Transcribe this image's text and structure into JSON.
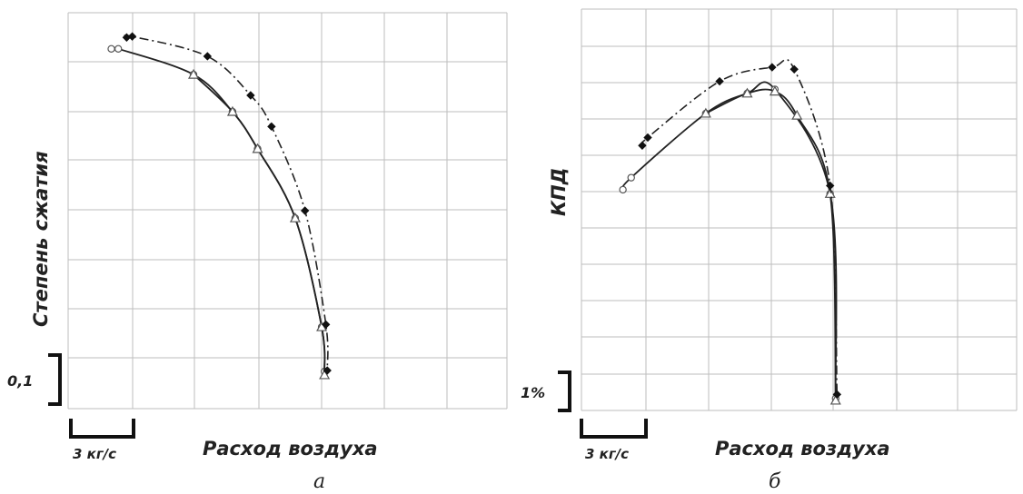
{
  "chart_data": [
    {
      "type": "line",
      "panel_label": "а",
      "ylabel": "Степень сжатия",
      "xlabel": "Расход воздуха",
      "x_scale_label": "3 кг/с",
      "y_scale_label": "0,1",
      "grid": true,
      "x_unit": "кг/с",
      "y_unit": "степень сжатия (отн.)",
      "xlim": [
        0,
        31.5
      ],
      "ylim": [
        0,
        0.8
      ],
      "series": [
        {
          "style": "solid-circle",
          "color": "#222222",
          "x": [
            3.1,
            3.6,
            9.0,
            11.8,
            13.6,
            16.3,
            18.2,
            18.4
          ],
          "y": [
            0.727,
            0.727,
            0.675,
            0.6,
            0.525,
            0.385,
            0.165,
            0.075
          ]
        },
        {
          "style": "solid-triangle",
          "color": "#222222",
          "x": [
            9.0,
            11.8,
            13.6,
            16.3,
            18.2,
            18.4
          ],
          "y": [
            0.675,
            0.6,
            0.525,
            0.385,
            0.165,
            0.068
          ]
        },
        {
          "style": "dashdot-diamond",
          "color": "#222222",
          "x": [
            4.2,
            4.6,
            10.0,
            13.1,
            14.6,
            17.0,
            18.5,
            18.6
          ],
          "y": [
            0.75,
            0.752,
            0.712,
            0.633,
            0.57,
            0.4,
            0.17,
            0.077
          ]
        }
      ]
    },
    {
      "type": "line",
      "panel_label": "б",
      "ylabel": "КПД",
      "xlabel": "Расход воздуха",
      "x_scale_label": "3 кг/с",
      "y_scale_label": "1%",
      "grid": true,
      "x_unit": "кг/с",
      "y_unit": "%",
      "xlim": [
        0,
        31.5
      ],
      "ylim": [
        0,
        10
      ],
      "series": [
        {
          "style": "solid-circle",
          "color": "#222222",
          "x": [
            3.0,
            3.6,
            9.0,
            12.0,
            14.0,
            18.0,
            18.4
          ],
          "y": [
            5.5,
            5.8,
            7.4,
            7.9,
            8.0,
            5.4,
            0.3
          ]
        },
        {
          "style": "solid-triangle",
          "color": "#222222",
          "x": [
            9.0,
            12.0,
            14.0,
            15.6,
            18.0,
            18.4
          ],
          "y": [
            7.4,
            7.9,
            7.95,
            7.35,
            5.4,
            0.25
          ]
        },
        {
          "style": "dashdot-diamond",
          "color": "#222222",
          "x": [
            4.4,
            4.8,
            10.0,
            13.8,
            15.4,
            18.0,
            18.5
          ],
          "y": [
            6.6,
            6.8,
            8.2,
            8.55,
            8.5,
            5.6,
            0.4
          ]
        }
      ]
    }
  ]
}
